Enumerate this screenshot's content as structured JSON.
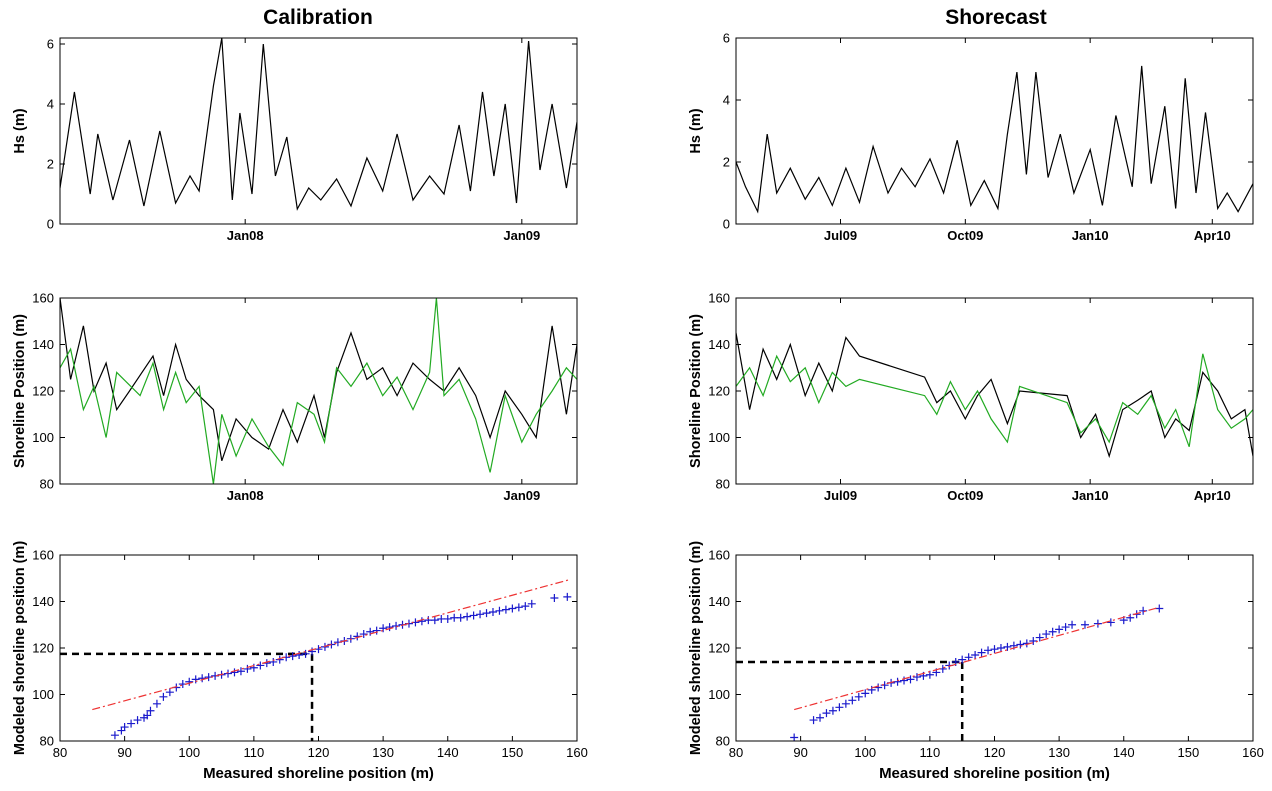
{
  "columns": [
    {
      "title": "Calibration"
    },
    {
      "title": "Shorecast"
    }
  ],
  "chart_data": [
    {
      "id": "cal-hs",
      "type": "line",
      "title": "Calibration",
      "ylabel": "Hs (m)",
      "xlabel": "",
      "ylim": [
        0,
        6.2
      ],
      "yticks": [
        0,
        2,
        4,
        6
      ],
      "xlim": [
        "2007-05-01",
        "2009-03-15"
      ],
      "xticks": [
        {
          "label": "Jan08",
          "date": "2008-01-01"
        },
        {
          "label": "Jan09",
          "date": "2009-01-01"
        }
      ],
      "series": [
        {
          "color": "#000000",
          "x": [
            "2007-05-01",
            "2007-05-20",
            "2007-06-10",
            "2007-06-20",
            "2007-07-10",
            "2007-08-01",
            "2007-08-20",
            "2007-09-10",
            "2007-10-01",
            "2007-10-20",
            "2007-11-01",
            "2007-11-20",
            "2007-12-01",
            "2007-12-15",
            "2007-12-25",
            "2008-01-10",
            "2008-01-25",
            "2008-02-10",
            "2008-02-25",
            "2008-03-10",
            "2008-03-25",
            "2008-04-10",
            "2008-05-01",
            "2008-05-20",
            "2008-06-10",
            "2008-07-01",
            "2008-07-20",
            "2008-08-10",
            "2008-09-01",
            "2008-09-20",
            "2008-10-10",
            "2008-10-25",
            "2008-11-10",
            "2008-11-25",
            "2008-12-10",
            "2008-12-25",
            "2009-01-10",
            "2009-01-25",
            "2009-02-10",
            "2009-03-01",
            "2009-03-15"
          ],
          "y": [
            1.2,
            4.4,
            1.0,
            3.0,
            0.8,
            2.8,
            0.6,
            3.1,
            0.7,
            1.6,
            1.1,
            4.6,
            6.2,
            0.8,
            3.7,
            1.0,
            6.0,
            1.6,
            2.9,
            0.5,
            1.2,
            0.8,
            1.5,
            0.6,
            2.2,
            1.1,
            3.0,
            0.8,
            1.6,
            1.0,
            3.3,
            1.1,
            4.4,
            1.6,
            4.0,
            0.7,
            6.1,
            1.8,
            4.0,
            1.2,
            3.4
          ]
        }
      ]
    },
    {
      "id": "cal-shore",
      "type": "line",
      "ylabel": "Shoreline Position (m)",
      "xlabel": "",
      "ylim": [
        80,
        160
      ],
      "yticks": [
        80,
        100,
        120,
        140,
        160
      ],
      "xlim": [
        "2007-05-01",
        "2009-03-15"
      ],
      "xticks": [
        {
          "label": "Jan08",
          "date": "2008-01-01"
        },
        {
          "label": "Jan09",
          "date": "2009-01-01"
        }
      ],
      "series": [
        {
          "color": "#000000",
          "x": [
            "2007-05-01",
            "2007-05-15",
            "2007-06-01",
            "2007-06-15",
            "2007-07-01",
            "2007-07-15",
            "2007-08-01",
            "2007-09-01",
            "2007-09-15",
            "2007-10-01",
            "2007-10-15",
            "2007-11-01",
            "2007-11-20",
            "2007-12-01",
            "2007-12-20",
            "2008-01-10",
            "2008-02-01",
            "2008-02-20",
            "2008-03-10",
            "2008-04-01",
            "2008-04-15",
            "2008-05-01",
            "2008-05-20",
            "2008-06-10",
            "2008-07-01",
            "2008-07-20",
            "2008-08-10",
            "2008-09-01",
            "2008-09-20",
            "2008-10-10",
            "2008-11-01",
            "2008-11-20",
            "2008-12-10",
            "2009-01-01",
            "2009-01-20",
            "2009-02-10",
            "2009-03-01",
            "2009-03-15"
          ],
          "y": [
            160,
            125,
            148,
            120,
            132,
            112,
            120,
            135,
            118,
            140,
            125,
            118,
            112,
            90,
            108,
            100,
            95,
            112,
            98,
            118,
            100,
            128,
            145,
            125,
            130,
            118,
            132,
            125,
            120,
            130,
            118,
            100,
            120,
            110,
            100,
            148,
            110,
            140
          ]
        },
        {
          "color": "#22aa22",
          "x": [
            "2007-05-01",
            "2007-05-15",
            "2007-06-01",
            "2007-06-15",
            "2007-07-01",
            "2007-07-15",
            "2007-08-15",
            "2007-09-01",
            "2007-09-15",
            "2007-10-01",
            "2007-10-15",
            "2007-11-01",
            "2007-11-20",
            "2007-12-01",
            "2007-12-20",
            "2008-01-10",
            "2008-02-01",
            "2008-02-20",
            "2008-03-10",
            "2008-04-01",
            "2008-04-15",
            "2008-05-01",
            "2008-05-20",
            "2008-06-10",
            "2008-07-01",
            "2008-07-20",
            "2008-08-10",
            "2008-09-01",
            "2008-09-10",
            "2008-09-20",
            "2008-10-10",
            "2008-11-01",
            "2008-11-20",
            "2008-12-10",
            "2009-01-01",
            "2009-01-20",
            "2009-02-10",
            "2009-03-01",
            "2009-03-15"
          ],
          "y": [
            130,
            138,
            112,
            122,
            100,
            128,
            118,
            132,
            112,
            128,
            115,
            122,
            80,
            110,
            92,
            108,
            96,
            88,
            115,
            110,
            98,
            130,
            122,
            132,
            118,
            126,
            112,
            128,
            160,
            118,
            125,
            108,
            85,
            118,
            98,
            110,
            120,
            130,
            125
          ]
        }
      ]
    },
    {
      "id": "cal-scatter",
      "type": "scatter",
      "xlabel": "Measured shoreline position (m)",
      "ylabel": "Modeled shoreline position (m)",
      "xlim": [
        80,
        160
      ],
      "ylim": [
        80,
        160
      ],
      "xticks": [
        80,
        90,
        100,
        110,
        120,
        130,
        140,
        150,
        160
      ],
      "yticks": [
        80,
        100,
        120,
        140,
        160
      ],
      "series": [
        {
          "color": "#1a1acc",
          "marker": "+",
          "x": [
            88.5,
            89.5,
            90,
            91,
            92,
            93,
            93.5,
            94,
            95,
            96,
            97,
            98,
            99,
            100,
            101,
            102,
            103,
            104,
            105,
            106,
            107,
            108,
            109,
            110,
            111,
            112,
            113,
            114,
            115,
            116,
            117,
            118,
            119,
            120,
            121,
            122,
            123,
            124,
            125,
            126,
            127,
            128,
            129,
            130,
            131,
            132,
            133,
            134,
            135,
            136,
            137,
            138,
            139,
            140,
            141,
            142,
            143,
            144,
            145,
            146,
            147,
            148,
            149,
            150,
            151,
            152,
            153,
            156.5,
            158.5
          ],
          "y": [
            82.5,
            84.5,
            86,
            87.5,
            89,
            90,
            91,
            93,
            96,
            99,
            101,
            103,
            104.5,
            105.5,
            106.5,
            107,
            107.5,
            108,
            108.5,
            109,
            109.5,
            110,
            111,
            111.5,
            112.5,
            113.5,
            114,
            115,
            116,
            116.5,
            117,
            117.5,
            118.5,
            119.5,
            120.5,
            121.5,
            122.5,
            123,
            124,
            125,
            126,
            127,
            127.5,
            128.5,
            129,
            129.5,
            130,
            130.5,
            131,
            131.5,
            132,
            132,
            132.5,
            132.5,
            133,
            133,
            133.5,
            134,
            134.5,
            135,
            135.5,
            136,
            136.5,
            137,
            137.5,
            138,
            139,
            141.5,
            142
          ]
        },
        {
          "color": "#ee3333",
          "style": "dashdot",
          "x": [
            85,
            159
          ],
          "y": [
            93.5,
            149.5
          ]
        }
      ],
      "guides": {
        "x": 119,
        "y": 117.5,
        "color": "#000000"
      }
    },
    {
      "id": "sc-hs",
      "type": "line",
      "title": "Shorecast",
      "ylabel": "Hs (m)",
      "xlabel": "",
      "ylim": [
        0,
        6
      ],
      "yticks": [
        0,
        2,
        4,
        6
      ],
      "xlim": [
        "2009-04-15",
        "2010-05-01"
      ],
      "xticks": [
        {
          "label": "Jul09",
          "date": "2009-07-01"
        },
        {
          "label": "Oct09",
          "date": "2009-10-01"
        },
        {
          "label": "Jan10",
          "date": "2010-01-01"
        },
        {
          "label": "Apr10",
          "date": "2010-04-01"
        }
      ],
      "series": [
        {
          "color": "#000000",
          "x": [
            "2009-04-15",
            "2009-04-22",
            "2009-05-01",
            "2009-05-08",
            "2009-05-15",
            "2009-05-25",
            "2009-06-05",
            "2009-06-15",
            "2009-06-25",
            "2009-07-05",
            "2009-07-15",
            "2009-07-25",
            "2009-08-05",
            "2009-08-15",
            "2009-08-25",
            "2009-09-05",
            "2009-09-15",
            "2009-09-25",
            "2009-10-05",
            "2009-10-15",
            "2009-10-25",
            "2009-11-01",
            "2009-11-08",
            "2009-11-15",
            "2009-11-22",
            "2009-12-01",
            "2009-12-10",
            "2009-12-20",
            "2010-01-01",
            "2010-01-10",
            "2010-01-20",
            "2010-02-01",
            "2010-02-08",
            "2010-02-15",
            "2010-02-25",
            "2010-03-05",
            "2010-03-12",
            "2010-03-20",
            "2010-03-27",
            "2010-04-05",
            "2010-04-12",
            "2010-04-20",
            "2010-05-01"
          ],
          "y": [
            2.0,
            1.2,
            0.4,
            2.9,
            1.0,
            1.8,
            0.8,
            1.5,
            0.6,
            1.8,
            0.7,
            2.5,
            1.0,
            1.8,
            1.2,
            2.1,
            1.0,
            2.7,
            0.6,
            1.4,
            0.5,
            2.9,
            4.9,
            1.6,
            4.9,
            1.5,
            2.9,
            1.0,
            2.4,
            0.6,
            3.5,
            1.2,
            5.1,
            1.3,
            3.8,
            0.5,
            4.7,
            1.0,
            3.6,
            0.5,
            1.0,
            0.4,
            1.3
          ]
        }
      ]
    },
    {
      "id": "sc-shore",
      "type": "line",
      "ylabel": "Shoreline Position (m)",
      "xlabel": "",
      "ylim": [
        80,
        160
      ],
      "yticks": [
        80,
        100,
        120,
        140,
        160
      ],
      "xlim": [
        "2009-04-15",
        "2010-05-01"
      ],
      "xticks": [
        {
          "label": "Jul09",
          "date": "2009-07-01"
        },
        {
          "label": "Oct09",
          "date": "2009-10-01"
        },
        {
          "label": "Jan10",
          "date": "2010-01-01"
        },
        {
          "label": "Apr10",
          "date": "2010-04-01"
        }
      ],
      "series": [
        {
          "color": "#000000",
          "x": [
            "2009-04-15",
            "2009-04-25",
            "2009-05-05",
            "2009-05-15",
            "2009-05-25",
            "2009-06-05",
            "2009-06-15",
            "2009-06-25",
            "2009-07-05",
            "2009-07-15",
            "2009-09-01",
            "2009-09-10",
            "2009-09-20",
            "2009-10-01",
            "2009-10-10",
            "2009-10-20",
            "2009-11-01",
            "2009-11-10",
            "2009-12-15",
            "2009-12-25",
            "2010-01-05",
            "2010-01-15",
            "2010-01-25",
            "2010-02-05",
            "2010-02-15",
            "2010-02-25",
            "2010-03-05",
            "2010-03-15",
            "2010-03-25",
            "2010-04-05",
            "2010-04-15",
            "2010-04-25",
            "2010-05-01"
          ],
          "y": [
            145,
            112,
            138,
            125,
            140,
            118,
            132,
            120,
            143,
            135,
            126,
            115,
            120,
            108,
            118,
            125,
            106,
            120,
            118,
            100,
            110,
            92,
            112,
            116,
            120,
            100,
            108,
            103,
            128,
            120,
            108,
            112,
            92
          ]
        },
        {
          "color": "#22aa22",
          "x": [
            "2009-04-15",
            "2009-04-25",
            "2009-05-05",
            "2009-05-15",
            "2009-05-25",
            "2009-06-05",
            "2009-06-15",
            "2009-06-25",
            "2009-07-05",
            "2009-07-15",
            "2009-09-01",
            "2009-09-10",
            "2009-09-20",
            "2009-10-01",
            "2009-10-10",
            "2009-10-20",
            "2009-11-01",
            "2009-11-10",
            "2009-12-15",
            "2009-12-25",
            "2010-01-05",
            "2010-01-15",
            "2010-01-25",
            "2010-02-05",
            "2010-02-15",
            "2010-02-25",
            "2010-03-05",
            "2010-03-15",
            "2010-03-25",
            "2010-04-05",
            "2010-04-15",
            "2010-04-25",
            "2010-05-01"
          ],
          "y": [
            122,
            130,
            118,
            135,
            124,
            130,
            115,
            128,
            122,
            125,
            118,
            110,
            124,
            112,
            120,
            108,
            98,
            122,
            115,
            102,
            108,
            98,
            115,
            110,
            118,
            104,
            112,
            96,
            136,
            112,
            104,
            108,
            112
          ]
        }
      ]
    },
    {
      "id": "sc-scatter",
      "type": "scatter",
      "xlabel": "Measured shoreline position (m)",
      "ylabel": "Modeled shoreline position (m)",
      "xlim": [
        80,
        160
      ],
      "ylim": [
        80,
        160
      ],
      "xticks": [
        80,
        90,
        100,
        110,
        120,
        130,
        140,
        150,
        160
      ],
      "yticks": [
        80,
        100,
        120,
        140,
        160
      ],
      "series": [
        {
          "color": "#1a1acc",
          "marker": "+",
          "x": [
            89,
            92,
            93,
            94,
            95,
            96,
            97,
            98,
            99,
            100,
            101,
            102,
            103,
            104,
            105,
            106,
            107,
            108,
            109,
            110,
            111,
            112,
            113,
            114,
            115,
            116,
            117,
            118,
            119,
            120,
            121,
            122,
            123,
            124,
            125,
            126,
            127,
            128,
            129,
            130,
            131,
            132,
            134,
            136,
            138,
            140,
            141,
            142,
            143,
            145.5
          ],
          "y": [
            81.5,
            89,
            90,
            92,
            93,
            94.5,
            96,
            97.5,
            99,
            100.5,
            102,
            103,
            104,
            105,
            105.5,
            106,
            106.5,
            107.5,
            108,
            108.5,
            109.5,
            111,
            112.5,
            114,
            115,
            116,
            117,
            118,
            119,
            119.5,
            120,
            120.5,
            121,
            121.5,
            122,
            123,
            124.5,
            126,
            127,
            128,
            129,
            130,
            130,
            130.5,
            131,
            132,
            133,
            134.5,
            136,
            137
          ]
        },
        {
          "color": "#ee3333",
          "style": "dashdot",
          "x": [
            89,
            145.5
          ],
          "y": [
            93.5,
            137.5
          ]
        }
      ],
      "guides": {
        "x": 115,
        "y": 114,
        "color": "#000000"
      }
    }
  ]
}
